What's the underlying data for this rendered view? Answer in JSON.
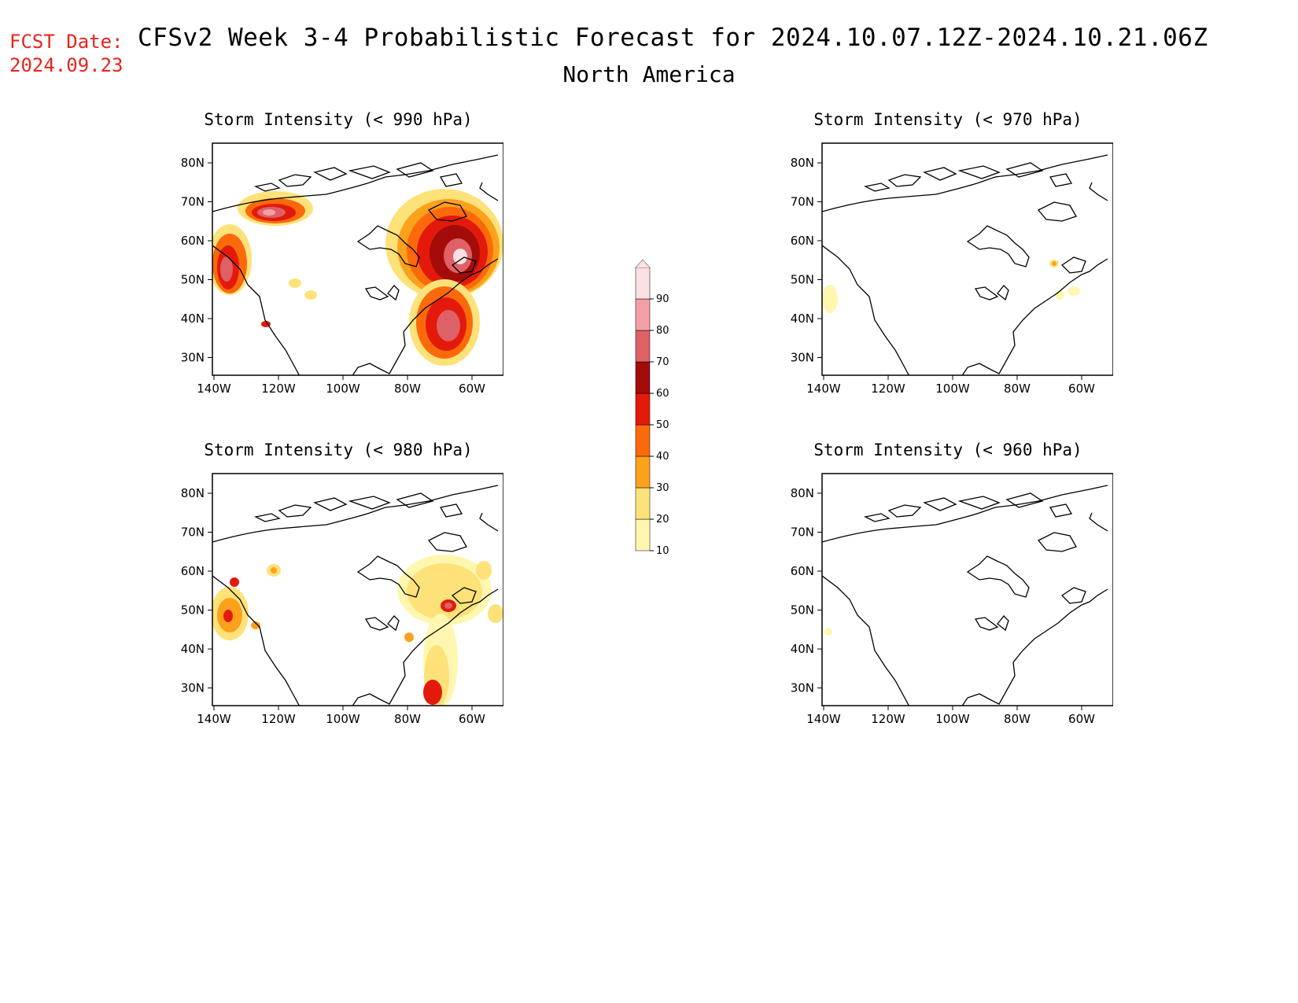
{
  "header": {
    "fcst_label": "FCST Date:",
    "fcst_date": "2024.09.23",
    "title": "CFSv2 Week 3-4 Probabilistic Forecast for 2024.10.07.12Z-2024.10.21.06Z",
    "region": "North America"
  },
  "axes": {
    "lon_ticks": [
      "140W",
      "120W",
      "100W",
      "80W",
      "60W"
    ],
    "lat_ticks": [
      "80N",
      "70N",
      "60N",
      "50N",
      "40N",
      "30N"
    ]
  },
  "colorbar": {
    "levels": [
      "10",
      "20",
      "30",
      "40",
      "50",
      "60",
      "70",
      "80",
      "90"
    ],
    "colors": [
      "#fff7b0",
      "#fde27a",
      "#fba11c",
      "#fb6a0a",
      "#e31a0b",
      "#a40c0a",
      "#dd6166",
      "#f2a0a6",
      "#fde0e3"
    ]
  },
  "panels": [
    {
      "id": "p990",
      "title": "Storm Intensity (< 990 hPa)"
    },
    {
      "id": "p970",
      "title": "Storm Intensity (< 970 hPa)"
    },
    {
      "id": "p980",
      "title": "Storm Intensity (< 980 hPa)"
    },
    {
      "id": "p960",
      "title": "Storm Intensity (< 960 hPa)"
    }
  ]
}
